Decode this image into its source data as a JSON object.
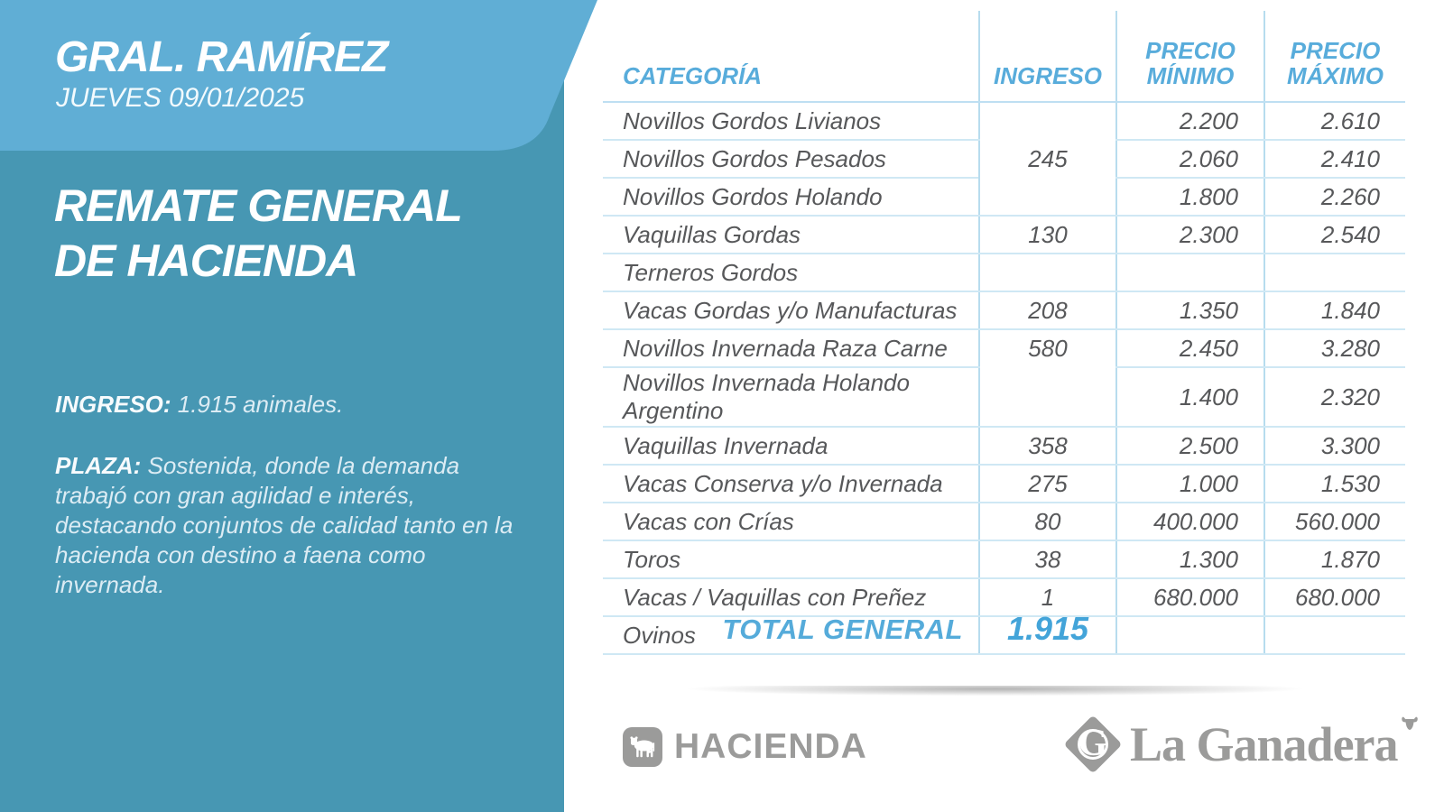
{
  "panel": {
    "location": "GRAL. RAMÍREZ",
    "date": "JUEVES 09/01/2025",
    "title_line1": "REMATE GENERAL",
    "title_line2": "DE HACIENDA",
    "ingreso_label": "INGRESO:",
    "ingreso_text": " 1.915 animales.",
    "plaza_label": "PLAZA:",
    "plaza_text": " Sostenida, donde la demanda trabajó con gran agilidad e interés, destacando conjuntos de calidad tanto en la hacienda con destino a faena como invernada."
  },
  "table": {
    "headers": [
      "CATEGORÍA",
      "INGRESO",
      "PRECIO MÍNIMO",
      "PRECIO MÁXIMO"
    ],
    "rows": [
      {
        "category": "Novillos Gordos Livianos",
        "ingreso": {
          "value": "245",
          "rowspan": 3,
          "valign": "middle"
        },
        "min": "2.200",
        "max": "2.610"
      },
      {
        "category": "Novillos Gordos Pesados",
        "ingreso": null,
        "min": "2.060",
        "max": "2.410"
      },
      {
        "category": "Novillos Gordos Holando",
        "ingreso": null,
        "min": "1.800",
        "max": "2.260"
      },
      {
        "category": "Vaquillas Gordas",
        "ingreso": {
          "value": "130"
        },
        "min": "2.300",
        "max": "2.540"
      },
      {
        "category": "Terneros Gordos",
        "ingreso": {
          "value": ""
        },
        "min": "",
        "max": ""
      },
      {
        "category": "Vacas Gordas y/o Manufacturas",
        "ingreso": {
          "value": "208"
        },
        "min": "1.350",
        "max": "1.840"
      },
      {
        "category": "Novillos Invernada Raza Carne",
        "ingreso": {
          "value": "580",
          "rowspan": 2,
          "valign": "top"
        },
        "min": "2.450",
        "max": "3.280"
      },
      {
        "category": "Novillos Invernada Holando Argentino",
        "ingreso": null,
        "min": "1.400",
        "max": "2.320"
      },
      {
        "category": "Vaquillas Invernada",
        "ingreso": {
          "value": "358"
        },
        "min": "2.500",
        "max": "3.300"
      },
      {
        "category": "Vacas Conserva y/o Invernada",
        "ingreso": {
          "value": "275"
        },
        "min": "1.000",
        "max": "1.530"
      },
      {
        "category": "Vacas con Crías",
        "ingreso": {
          "value": "80"
        },
        "min": "400.000",
        "max": "560.000"
      },
      {
        "category": "Toros",
        "ingreso": {
          "value": "38"
        },
        "min": "1.300",
        "max": "1.870"
      },
      {
        "category": "Vacas / Vaquillas con Preñez",
        "ingreso": {
          "value": "1"
        },
        "min": "680.000",
        "max": "680.000"
      },
      {
        "category": "Ovinos",
        "ingreso": {
          "value": ""
        },
        "min": "",
        "max": ""
      }
    ],
    "total_label": "TOTAL GENERAL",
    "total_value": "1.915"
  },
  "footer": {
    "hacienda_label": "HACIENDA",
    "brand_monogram": "G",
    "brand_name": "La Ganadera"
  },
  "colors": {
    "panel_light": "#60aed5",
    "panel_dark": "#4797b3",
    "table_header_blue": "#58acdb",
    "total_blue": "#43a4d9",
    "text_gray": "#57585a",
    "line_blue": "#cfe8f4",
    "footer_gray": "#9b9b9a"
  }
}
